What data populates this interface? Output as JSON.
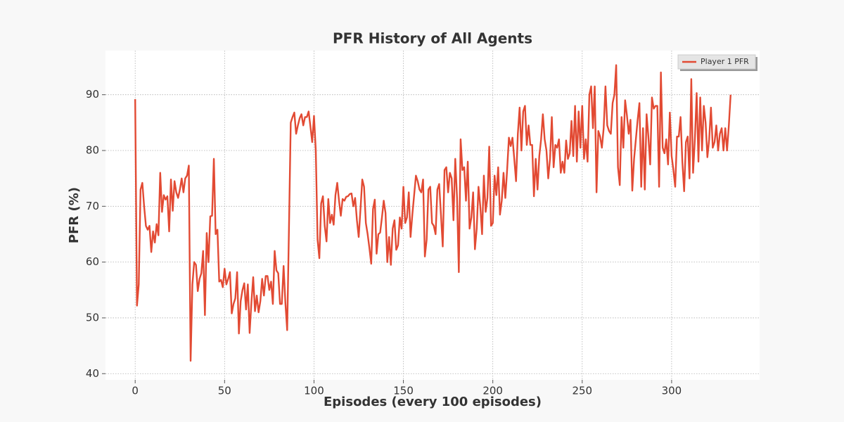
{
  "chart_data": {
    "type": "line",
    "title": "PFR History of All Agents",
    "x_label": "Episodes (every 100 episodes)",
    "y_label": "PFR (%)",
    "xlim": [
      -16.6,
      349.2
    ],
    "ylim": [
      38.9,
      97.9
    ],
    "xticks": [
      0,
      50,
      100,
      150,
      200,
      250,
      300
    ],
    "yticks": [
      40,
      50,
      60,
      70,
      80,
      90
    ],
    "grid": true,
    "legend": "upper right",
    "x": [
      0,
      1,
      2,
      3,
      4,
      5,
      6,
      7,
      8,
      9,
      10,
      11,
      12,
      13,
      14,
      15,
      16,
      17,
      18,
      19,
      20,
      21,
      22,
      23,
      24,
      25,
      26,
      27,
      28,
      29,
      30,
      31,
      32,
      33,
      34,
      35,
      36,
      37,
      38,
      39,
      40,
      41,
      42,
      43,
      44,
      45,
      46,
      47,
      48,
      49,
      50,
      51,
      52,
      53,
      54,
      55,
      56,
      57,
      58,
      59,
      60,
      61,
      62,
      63,
      64,
      65,
      66,
      67,
      68,
      69,
      70,
      71,
      72,
      73,
      74,
      75,
      76,
      77,
      78,
      79,
      80,
      81,
      82,
      83,
      84,
      85,
      86,
      87,
      88,
      89,
      90,
      91,
      92,
      93,
      94,
      95,
      96,
      97,
      98,
      99,
      100,
      101,
      102,
      103,
      104,
      105,
      106,
      107,
      108,
      109,
      110,
      111,
      112,
      113,
      114,
      115,
      116,
      117,
      118,
      119,
      120,
      121,
      122,
      123,
      124,
      125,
      126,
      127,
      128,
      129,
      130,
      131,
      132,
      133,
      134,
      135,
      136,
      137,
      138,
      139,
      140,
      141,
      142,
      143,
      144,
      145,
      146,
      147,
      148,
      149,
      150,
      151,
      152,
      153,
      154,
      155,
      156,
      157,
      158,
      159,
      160,
      161,
      162,
      163,
      164,
      165,
      166,
      167,
      168,
      169,
      170,
      171,
      172,
      173,
      174,
      175,
      176,
      177,
      178,
      179,
      180,
      181,
      182,
      183,
      184,
      185,
      186,
      187,
      188,
      189,
      190,
      191,
      192,
      193,
      194,
      195,
      196,
      197,
      198,
      199,
      200,
      201,
      202,
      203,
      204,
      205,
      206,
      207,
      208,
      209,
      210,
      211,
      212,
      213,
      214,
      215,
      216,
      217,
      218,
      219,
      220,
      221,
      222,
      223,
      224,
      225,
      226,
      227,
      228,
      229,
      230,
      231,
      232,
      233,
      234,
      235,
      236,
      237,
      238,
      239,
      240,
      241,
      242,
      243,
      244,
      245,
      246,
      247,
      248,
      249,
      250,
      251,
      252,
      253,
      254,
      255,
      256,
      257,
      258,
      259,
      260,
      261,
      262,
      263,
      264,
      265,
      266,
      267,
      268,
      269,
      270,
      271,
      272,
      273,
      274,
      275,
      276,
      277,
      278,
      279,
      280,
      281,
      282,
      283,
      284,
      285,
      286,
      287,
      288,
      289,
      290,
      291,
      292,
      293,
      294,
      295,
      296,
      297,
      298,
      299,
      300,
      301,
      302,
      303,
      304,
      305,
      306,
      307,
      308,
      309,
      310,
      311,
      312,
      313,
      314,
      315,
      316,
      317,
      318,
      319,
      320,
      321,
      322,
      323,
      324,
      325,
      326,
      327,
      328,
      329,
      330,
      331,
      332,
      333
    ],
    "series": [
      {
        "name": "Player 1 PFR",
        "color": "#e24a33",
        "values": [
          89.2,
          52.2,
          56,
          73,
          74.2,
          70,
          66.5,
          65.8,
          66.5,
          61.8,
          65.5,
          63.5,
          66.8,
          64.8,
          76,
          69,
          72,
          71.2,
          71.8,
          65.5,
          74.8,
          69.2,
          74.5,
          72.5,
          71.5,
          73,
          75,
          72.5,
          75,
          75.5,
          77.3,
          42.3,
          56,
          60,
          59.5,
          54.8,
          57,
          58,
          62,
          50.5,
          65.2,
          60,
          68.2,
          68.3,
          78.5,
          65,
          65.8,
          56.5,
          56.8,
          55.5,
          58.8,
          56,
          57,
          58.2,
          50.8,
          52.5,
          53.5,
          58.2,
          47.2,
          53,
          55,
          56.2,
          51.5,
          56,
          47.3,
          52.8,
          57.3,
          51.2,
          54,
          51,
          53,
          57,
          54,
          57.5,
          57.5,
          55,
          56.5,
          52.5,
          62,
          58.5,
          58,
          52.5,
          52.5,
          59.3,
          52.7,
          47.8,
          66,
          85,
          86,
          86.8,
          83,
          84.5,
          85.8,
          86.5,
          84.5,
          86,
          86,
          87,
          84.3,
          81.5,
          86.2,
          80,
          64,
          60.7,
          70.5,
          71.8,
          66.5,
          63.7,
          71.3,
          67,
          68.5,
          66.7,
          72,
          74.2,
          71,
          68.3,
          71.3,
          71,
          71.7,
          71.8,
          72.2,
          72.3,
          70,
          71.5,
          67.5,
          64.5,
          69.5,
          74.8,
          73.5,
          67,
          65,
          62.5,
          59.7,
          69.5,
          71.2,
          61.5,
          65,
          65.3,
          68,
          71,
          68.8,
          60,
          64.5,
          59.5,
          66,
          67.5,
          62.2,
          63,
          68,
          66,
          73.5,
          67,
          68,
          72.5,
          64.5,
          68.5,
          72,
          75.5,
          74.5,
          73,
          72.5,
          74.8,
          61,
          64,
          73,
          73.5,
          67,
          66.5,
          65,
          73,
          74,
          68.5,
          62.8,
          76.5,
          77,
          72.5,
          76,
          75,
          67.5,
          78.5,
          71.5,
          58.2,
          82,
          76.5,
          77,
          71,
          78,
          66,
          68,
          72.5,
          62.3,
          66,
          73.5,
          70,
          65,
          75.5,
          69,
          71.5,
          80.7,
          66.5,
          67,
          75.5,
          72,
          77,
          68.5,
          71,
          76,
          71.5,
          76.5,
          82.3,
          80.8,
          82.3,
          78.5,
          74.5,
          83,
          87.7,
          80,
          87,
          88,
          81,
          84.5,
          81,
          81,
          71.8,
          78.5,
          73,
          79,
          82,
          86.5,
          82,
          80,
          75,
          78.5,
          86,
          77,
          81,
          80.5,
          82,
          76,
          78,
          76,
          81.8,
          78.5,
          79.5,
          85.3,
          79,
          88,
          78,
          87,
          80.5,
          88,
          78.5,
          82,
          78,
          90,
          91.5,
          84,
          91.5,
          72.5,
          83.5,
          82.5,
          80.5,
          84,
          91.5,
          84.5,
          83.5,
          83,
          88.5,
          90,
          95.3,
          77,
          73.8,
          86,
          80.5,
          89,
          86.3,
          83,
          85.5,
          72.8,
          78.5,
          82,
          85.5,
          88.5,
          73.5,
          84,
          73,
          86.5,
          82.5,
          77.5,
          89.5,
          87.5,
          88,
          88,
          73.5,
          94,
          80.5,
          79.5,
          82,
          77.5,
          86.8,
          79,
          76.5,
          73.5,
          82.5,
          82.5,
          86,
          78,
          72.7,
          81.5,
          82.5,
          75,
          92.8,
          76,
          82,
          90.3,
          78,
          89.5,
          80,
          88,
          85,
          78.8,
          82,
          87.7,
          80.5,
          81.5,
          84.5,
          80,
          83,
          84,
          80,
          84,
          80,
          84.5,
          90
        ]
      }
    ]
  }
}
